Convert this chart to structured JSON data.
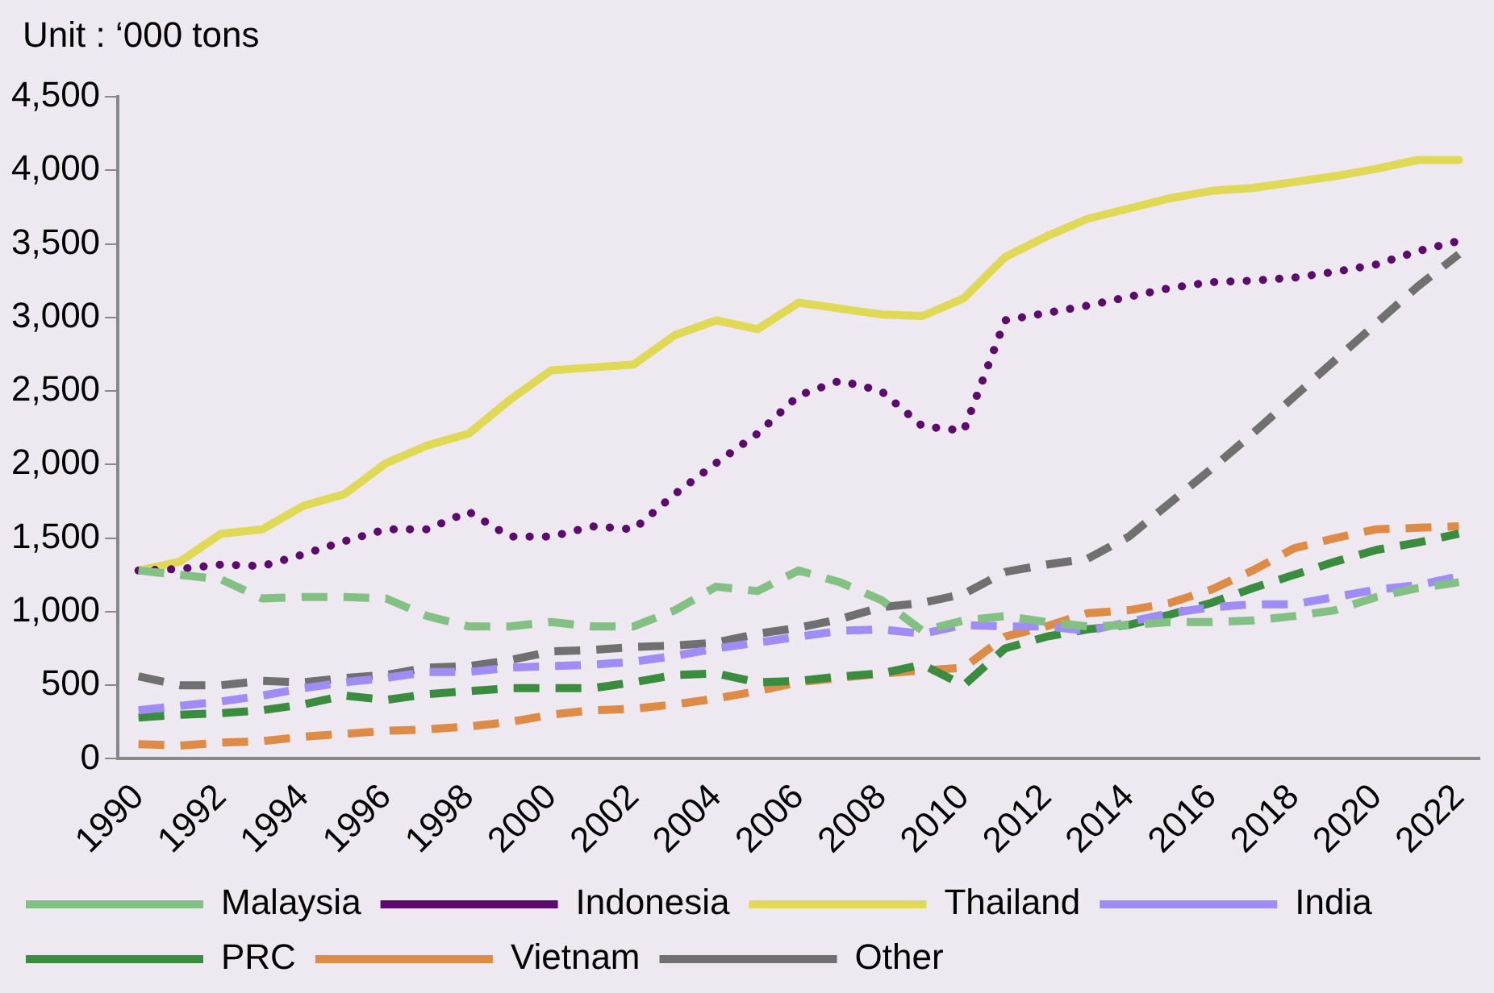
{
  "chart_data": {
    "type": "line",
    "ylabel": "Unit : ‘000 tons",
    "categories": [
      "1990",
      null,
      "1992",
      null,
      "1994",
      null,
      "1996",
      null,
      "1998",
      null,
      "2000",
      null,
      "2002",
      null,
      "2004",
      null,
      "2006",
      null,
      "2008",
      null,
      "2010",
      null,
      "2012",
      null,
      "2014",
      null,
      "2016",
      null,
      "2018",
      null,
      "2020",
      null,
      "2022"
    ],
    "ylim": [
      0,
      4500
    ],
    "yticks": [
      0,
      500,
      {
        "value": 1000,
        "label": "1,000"
      },
      {
        "value": 1500,
        "label": "1,500"
      },
      {
        "value": 2000,
        "label": "2,000"
      },
      {
        "value": 2500,
        "label": "2,500"
      },
      {
        "value": 3000,
        "label": "3,000"
      },
      {
        "value": 3500,
        "label": "3,500"
      },
      {
        "value": 4000,
        "label": "4,000"
      },
      {
        "value": 4500,
        "label": "4,500"
      }
    ],
    "grid": false,
    "legend": "bottom",
    "marker": "none",
    "series": [
      {
        "name": "Malaysia",
        "color": "#82c084",
        "line_style": "dashed",
        "values": [
          1280,
          1250,
          1220,
          1090,
          1100,
          1100,
          1090,
          970,
          900,
          900,
          930,
          900,
          900,
          1010,
          1170,
          1140,
          1280,
          1200,
          1080,
          870,
          940,
          970,
          930,
          900,
          910,
          930,
          930,
          940,
          970,
          1010,
          1100,
          1160,
          1200
        ]
      },
      {
        "name": "Indonesia",
        "color": "#5c0a6e",
        "line_style": "dotted",
        "values": [
          1280,
          1290,
          1320,
          1310,
          1390,
          1480,
          1560,
          1560,
          1680,
          1510,
          1510,
          1580,
          1560,
          1800,
          2010,
          2210,
          2470,
          2570,
          2500,
          2260,
          2230,
          2980,
          3030,
          3080,
          3140,
          3200,
          3240,
          3250,
          3270,
          3310,
          3360,
          3450,
          3520
        ]
      },
      {
        "name": "Thailand",
        "color": "#dfd955",
        "line_style": "solid",
        "values": [
          1280,
          1340,
          1530,
          1560,
          1720,
          1800,
          2010,
          2130,
          2210,
          2440,
          2640,
          2660,
          2680,
          2880,
          2980,
          2920,
          3100,
          3060,
          3020,
          3010,
          3130,
          3410,
          3550,
          3670,
          3740,
          3810,
          3860,
          3880,
          3920,
          3960,
          4010,
          4070,
          4070
        ]
      },
      {
        "name": "India",
        "color": "#a08cf5",
        "line_style": "dashed",
        "values": [
          330,
          360,
          390,
          430,
          480,
          520,
          550,
          590,
          590,
          620,
          630,
          640,
          660,
          700,
          750,
          790,
          830,
          870,
          880,
          850,
          910,
          900,
          900,
          870,
          930,
          990,
          1030,
          1050,
          1050,
          1100,
          1150,
          1180,
          1240
        ]
      },
      {
        "name": "PRC",
        "color": "#3a8c3e",
        "line_style": "dashed",
        "values": [
          280,
          300,
          310,
          330,
          370,
          430,
          400,
          440,
          460,
          480,
          480,
          480,
          520,
          570,
          580,
          520,
          530,
          560,
          580,
          640,
          500,
          750,
          830,
          880,
          910,
          980,
          1060,
          1160,
          1250,
          1340,
          1420,
          1470,
          1530
        ]
      },
      {
        "name": "Vietnam",
        "color": "#de8c45",
        "line_style": "dashed",
        "values": [
          100,
          90,
          110,
          120,
          150,
          170,
          190,
          200,
          220,
          250,
          300,
          330,
          340,
          370,
          410,
          460,
          520,
          550,
          580,
          600,
          620,
          830,
          900,
          990,
          1010,
          1060,
          1150,
          1280,
          1430,
          1500,
          1560,
          1570,
          1580
        ]
      },
      {
        "name": "Other",
        "color": "#707070",
        "line_style": "dashed",
        "values": [
          560,
          500,
          500,
          530,
          520,
          550,
          570,
          620,
          630,
          670,
          730,
          740,
          760,
          770,
          790,
          850,
          890,
          950,
          1030,
          1060,
          1120,
          1270,
          1320,
          1360,
          1510,
          1740,
          1970,
          2210,
          2460,
          2710,
          2960,
          3210,
          3430
        ]
      }
    ]
  }
}
